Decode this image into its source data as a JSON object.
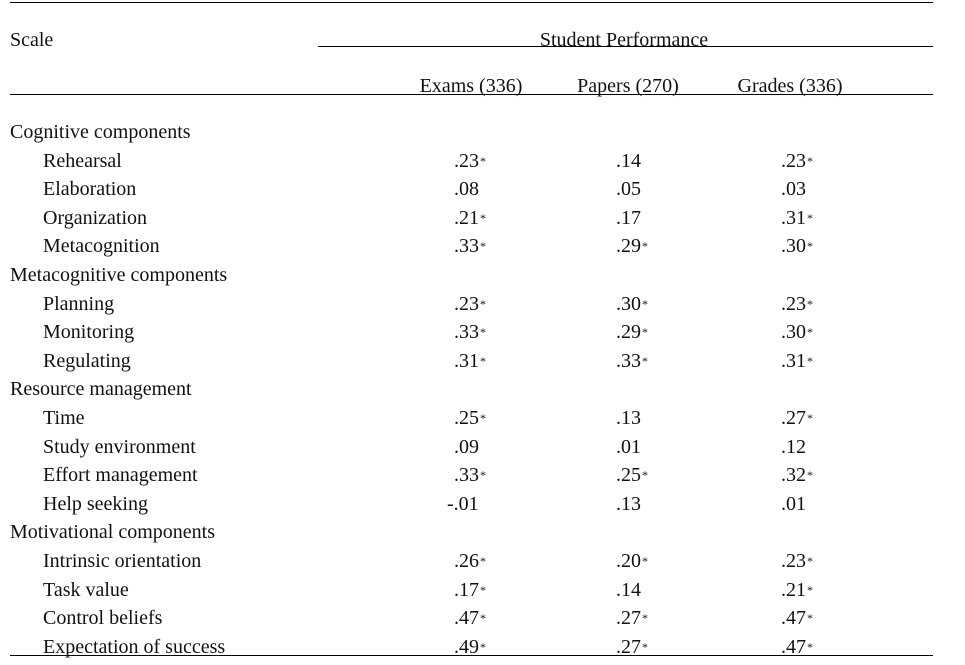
{
  "table": {
    "scale_header": "Scale",
    "spanner_header": "Student Performance",
    "columns": [
      "Exams (336)",
      "Papers (270)",
      "Grades (336)"
    ],
    "rows": [
      {
        "type": "group",
        "label": "Cognitive components"
      },
      {
        "type": "item",
        "label": "Rehearsal",
        "values": [
          ".23",
          ".14",
          ".23"
        ],
        "stars": [
          "*",
          "",
          "*"
        ]
      },
      {
        "type": "item",
        "label": "Elaboration",
        "values": [
          ".08",
          ".05",
          ".03"
        ],
        "stars": [
          "",
          "",
          ""
        ]
      },
      {
        "type": "item",
        "label": "Organization",
        "values": [
          ".21",
          ".17",
          ".31"
        ],
        "stars": [
          "*",
          "",
          "*"
        ]
      },
      {
        "type": "item",
        "label": "Metacognition",
        "values": [
          ".33",
          ".29",
          ".30"
        ],
        "stars": [
          "*",
          "*",
          "*"
        ]
      },
      {
        "type": "group",
        "label": "Metacognitive components"
      },
      {
        "type": "item",
        "label": "Planning",
        "values": [
          ".23",
          ".30",
          ".23"
        ],
        "stars": [
          "*",
          "*",
          "*"
        ]
      },
      {
        "type": "item",
        "label": "Monitoring",
        "values": [
          ".33",
          ".29",
          ".30"
        ],
        "stars": [
          "*",
          "*",
          "*"
        ]
      },
      {
        "type": "item",
        "label": "Regulating",
        "values": [
          ".31",
          ".33",
          ".31"
        ],
        "stars": [
          "*",
          "*",
          "*"
        ]
      },
      {
        "type": "group",
        "label": "Resource management"
      },
      {
        "type": "item",
        "label": "Time",
        "values": [
          ".25",
          ".13",
          ".27"
        ],
        "stars": [
          "*",
          "",
          "*"
        ]
      },
      {
        "type": "item",
        "label": "Study environment",
        "values": [
          ".09",
          ".01",
          ".12"
        ],
        "stars": [
          "",
          "",
          ""
        ]
      },
      {
        "type": "item",
        "label": "Effort management",
        "values": [
          ".33",
          ".25",
          ".32"
        ],
        "stars": [
          "*",
          "*",
          "*"
        ]
      },
      {
        "type": "item",
        "label": "Help seeking",
        "values": [
          "-.01",
          ".13",
          ".01"
        ],
        "stars": [
          "",
          "",
          ""
        ]
      },
      {
        "type": "group",
        "label": "Motivational components"
      },
      {
        "type": "item",
        "label": "Intrinsic orientation",
        "values": [
          ".26",
          ".20",
          ".23"
        ],
        "stars": [
          "*",
          "*",
          "*"
        ]
      },
      {
        "type": "item",
        "label": "Task value",
        "values": [
          ".17",
          ".14",
          ".21"
        ],
        "stars": [
          "*",
          "",
          "*"
        ]
      },
      {
        "type": "item",
        "label": "Control beliefs",
        "values": [
          ".47",
          ".27",
          ".47"
        ],
        "stars": [
          "*",
          "*",
          "*"
        ]
      },
      {
        "type": "item",
        "label": "Expectation of success",
        "values": [
          ".49",
          ".27",
          ".47"
        ],
        "stars": [
          "*",
          "*",
          "*"
        ]
      }
    ]
  }
}
